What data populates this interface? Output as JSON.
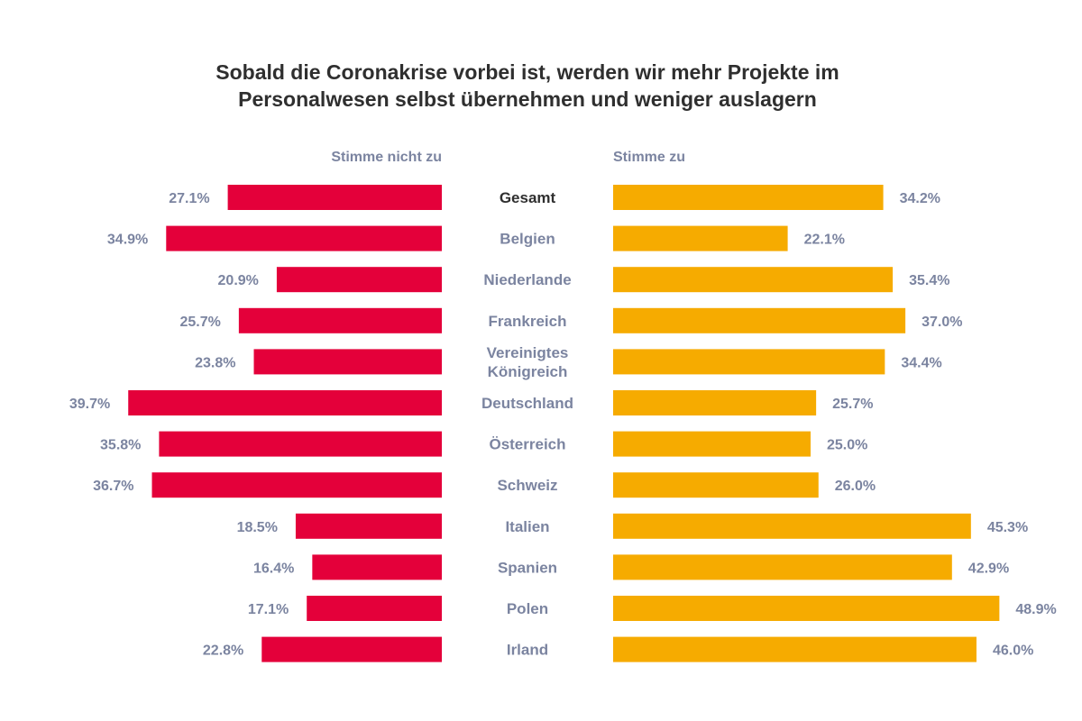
{
  "chart_data": {
    "type": "bar",
    "orientation": "horizontal-diverging",
    "title": [
      "Sobald die Coronakrise vorbei ist, werden wir mehr Projekte im",
      "Personalwesen selbst übernehmen und weniger auslagern"
    ],
    "categories": [
      [
        "Gesamt"
      ],
      [
        "Belgien"
      ],
      [
        "Niederlande"
      ],
      [
        "Frankreich"
      ],
      [
        "Vereinigtes",
        "Königreich"
      ],
      [
        "Deutschland"
      ],
      [
        "Österreich"
      ],
      [
        "Schweiz"
      ],
      [
        "Italien"
      ],
      [
        "Spanien"
      ],
      [
        "Polen"
      ],
      [
        "Irland"
      ]
    ],
    "highlight_category_index": 0,
    "series": [
      {
        "name": "Stimme nicht zu",
        "side": "left",
        "color": "#e4003a",
        "values": [
          27.1,
          34.9,
          20.9,
          25.7,
          23.8,
          39.7,
          35.8,
          36.7,
          18.5,
          16.4,
          17.1,
          22.8
        ],
        "labels": [
          "27.1%",
          "34.9%",
          "20.9%",
          "25.7%",
          "23.8%",
          "39.7%",
          "35.8%",
          "36.7%",
          "18.5%",
          "16.4%",
          "17.1%",
          "22.8%"
        ]
      },
      {
        "name": "Stimme zu",
        "side": "right",
        "color": "#f6ab00",
        "values": [
          34.2,
          22.1,
          35.4,
          37.0,
          34.4,
          25.7,
          25.0,
          26.0,
          45.3,
          42.9,
          48.9,
          46.0
        ],
        "labels": [
          "34.2%",
          "22.1%",
          "35.4%",
          "37.0%",
          "34.4%",
          "25.7%",
          "25.0%",
          "26.0%",
          "45.3%",
          "42.9%",
          "48.9%",
          "46.0%"
        ]
      }
    ],
    "unit": "%",
    "grid": false,
    "legend": "column-headers"
  },
  "colors": {
    "title": "#2f2f2f",
    "label": "#7b84a0",
    "highlight_label": "#2f2f2f",
    "disagree": "#e4003a",
    "agree": "#f6ab00"
  }
}
